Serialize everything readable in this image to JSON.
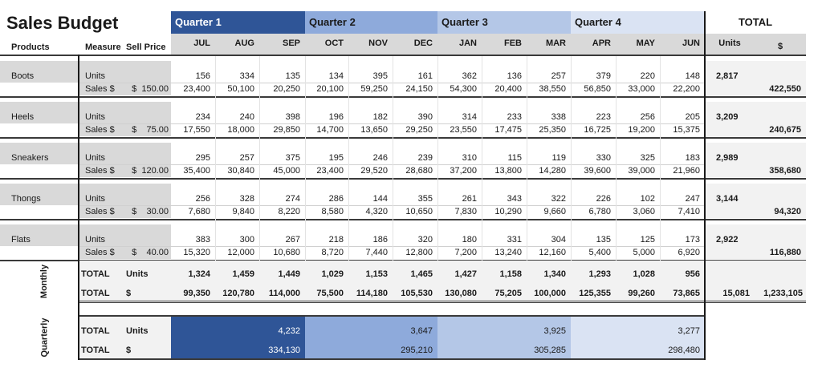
{
  "title": "Sales Budget",
  "quarters": [
    {
      "label": "Quarter 1",
      "color": "#2f5597"
    },
    {
      "label": "Quarter 2",
      "color": "#8eaadb"
    },
    {
      "label": "Quarter 3",
      "color": "#b4c7e7"
    },
    {
      "label": "Quarter 4",
      "color": "#dae3f3"
    }
  ],
  "total_header": "TOTAL",
  "headers": {
    "products": "Products",
    "measure": "Measure",
    "sell_price": "Sell Price",
    "months": [
      "JUL",
      "AUG",
      "SEP",
      "OCT",
      "NOV",
      "DEC",
      "JAN",
      "FEB",
      "MAR",
      "APR",
      "MAY",
      "JUN"
    ],
    "total_units": "Units",
    "total_dollars": "$"
  },
  "measures": {
    "units": "Units",
    "sales": "Sales $"
  },
  "products": [
    {
      "name": "Boots",
      "price": "$  150.00",
      "units": [
        "156",
        "334",
        "135",
        "134",
        "395",
        "161",
        "362",
        "136",
        "257",
        "379",
        "220",
        "148"
      ],
      "sales": [
        "23,400",
        "50,100",
        "20,250",
        "20,100",
        "59,250",
        "24,150",
        "54,300",
        "20,400",
        "38,550",
        "56,850",
        "33,000",
        "22,200"
      ],
      "total_units": "2,817",
      "total_sales": "422,550"
    },
    {
      "name": "Heels",
      "price": "$    75.00",
      "units": [
        "234",
        "240",
        "398",
        "196",
        "182",
        "390",
        "314",
        "233",
        "338",
        "223",
        "256",
        "205"
      ],
      "sales": [
        "17,550",
        "18,000",
        "29,850",
        "14,700",
        "13,650",
        "29,250",
        "23,550",
        "17,475",
        "25,350",
        "16,725",
        "19,200",
        "15,375"
      ],
      "total_units": "3,209",
      "total_sales": "240,675"
    },
    {
      "name": "Sneakers",
      "price": "$  120.00",
      "units": [
        "295",
        "257",
        "375",
        "195",
        "246",
        "239",
        "310",
        "115",
        "119",
        "330",
        "325",
        "183"
      ],
      "sales": [
        "35,400",
        "30,840",
        "45,000",
        "23,400",
        "29,520",
        "28,680",
        "37,200",
        "13,800",
        "14,280",
        "39,600",
        "39,000",
        "21,960"
      ],
      "total_units": "2,989",
      "total_sales": "358,680"
    },
    {
      "name": "Thongs",
      "price": "$    30.00",
      "units": [
        "256",
        "328",
        "274",
        "286",
        "144",
        "355",
        "261",
        "343",
        "322",
        "226",
        "102",
        "247"
      ],
      "sales": [
        "7,680",
        "9,840",
        "8,220",
        "8,580",
        "4,320",
        "10,650",
        "7,830",
        "10,290",
        "9,660",
        "6,780",
        "3,060",
        "7,410"
      ],
      "total_units": "3,144",
      "total_sales": "94,320"
    },
    {
      "name": "Flats",
      "price": "$    40.00",
      "units": [
        "383",
        "300",
        "267",
        "218",
        "186",
        "320",
        "180",
        "331",
        "304",
        "135",
        "125",
        "173"
      ],
      "sales": [
        "15,320",
        "12,000",
        "10,680",
        "8,720",
        "7,440",
        "12,800",
        "7,200",
        "13,240",
        "12,160",
        "5,400",
        "5,000",
        "6,920"
      ],
      "total_units": "2,922",
      "total_sales": "116,880"
    }
  ],
  "monthly": {
    "section_label": "Monthly",
    "units_row": {
      "label": "TOTAL",
      "measure": "Units",
      "values": [
        "1,324",
        "1,459",
        "1,449",
        "1,029",
        "1,153",
        "1,465",
        "1,427",
        "1,158",
        "1,340",
        "1,293",
        "1,028",
        "956"
      ]
    },
    "dollars_row": {
      "label": "TOTAL",
      "measure": "$",
      "values": [
        "99,350",
        "120,780",
        "114,000",
        "75,500",
        "114,180",
        "105,530",
        "130,080",
        "75,205",
        "100,000",
        "125,355",
        "99,260",
        "73,865"
      ],
      "total_units": "15,081",
      "total_dollars": "1,233,105"
    }
  },
  "quarterly": {
    "section_label": "Quarterly",
    "units_row": {
      "label": "TOTAL",
      "measure": "Units",
      "values": [
        "4,232",
        "3,647",
        "3,925",
        "3,277"
      ]
    },
    "dollars_row": {
      "label": "TOTAL",
      "measure": "$",
      "values": [
        "334,130",
        "295,210",
        "305,285",
        "298,480"
      ]
    }
  }
}
